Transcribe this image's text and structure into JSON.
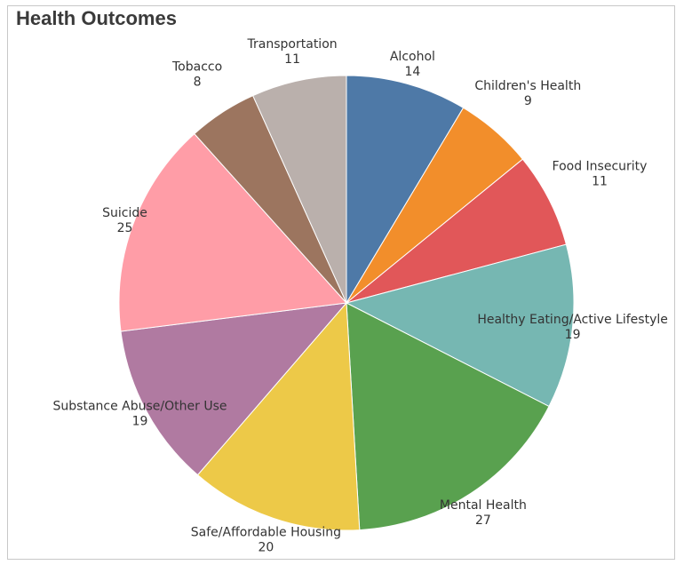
{
  "chart_data": {
    "type": "pie",
    "title": "Health Outcomes",
    "start_angle_deg": 0,
    "direction": "clockwise",
    "slices": [
      {
        "label": "Alcohol",
        "value": 14,
        "color": "#4E79A7"
      },
      {
        "label": "Children's Health",
        "value": 9,
        "color": "#F28E2B"
      },
      {
        "label": "Food Insecurity",
        "value": 11,
        "color": "#E15759"
      },
      {
        "label": "Healthy Eating/Active Lifestyle",
        "value": 19,
        "color": "#76B7B2"
      },
      {
        "label": "Mental Health",
        "value": 27,
        "color": "#59A14F"
      },
      {
        "label": "Safe/Affordable Housing",
        "value": 20,
        "color": "#EDC948"
      },
      {
        "label": "Substance Abuse/Other Use",
        "value": 19,
        "color": "#B07AA1"
      },
      {
        "label": "Suicide",
        "value": 25,
        "color": "#FF9DA7"
      },
      {
        "label": "Tobacco",
        "value": 8,
        "color": "#9C755F"
      },
      {
        "label": "Transportation",
        "value": 11,
        "color": "#BAB0AC"
      }
    ]
  }
}
